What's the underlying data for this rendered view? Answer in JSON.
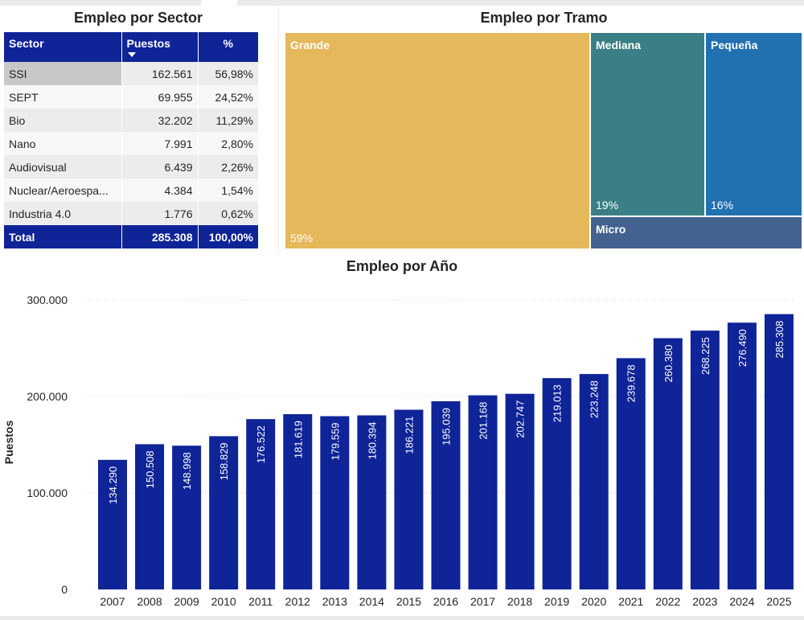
{
  "sector": {
    "title": "Empleo por Sector",
    "columns": [
      "Sector",
      "Puestos",
      "%"
    ],
    "rows": [
      {
        "sector": "SSI",
        "puestos": "162.561",
        "pct": "56,98%"
      },
      {
        "sector": "SEPT",
        "puestos": "69.955",
        "pct": "24,52%"
      },
      {
        "sector": "Bio",
        "puestos": "32.202",
        "pct": "11,29%"
      },
      {
        "sector": "Nano",
        "puestos": "7.991",
        "pct": "2,80%"
      },
      {
        "sector": "Audiovisual",
        "puestos": "6.439",
        "pct": "2,26%"
      },
      {
        "sector": "Nuclear/Aeroespa...",
        "puestos": "4.384",
        "pct": "1,54%"
      },
      {
        "sector": "Industria 4.0",
        "puestos": "1.776",
        "pct": "0,62%"
      }
    ],
    "total": {
      "label": "Total",
      "puestos": "285.308",
      "pct": "100,00%"
    }
  },
  "tramo": {
    "title": "Empleo por Tramo",
    "tiles": [
      {
        "name": "Grande",
        "pct_label": "59%",
        "share": 59,
        "color": "#e6b85c"
      },
      {
        "name": "Mediana",
        "pct_label": "19%",
        "share": 19,
        "color": "#3a7f85"
      },
      {
        "name": "Pequeña",
        "pct_label": "16%",
        "share": 16,
        "color": "#2170b0"
      },
      {
        "name": "Micro",
        "pct_label": "",
        "share": 6,
        "color": "#44628f"
      }
    ]
  },
  "chart_data": {
    "type": "bar",
    "title": "Empleo por Año",
    "xlabel": "",
    "ylabel": "Puestos",
    "ylim": [
      0,
      300000
    ],
    "yticks": [
      0,
      100000,
      200000,
      300000
    ],
    "ytick_labels": [
      "0",
      "100.000",
      "200.000",
      "300.000"
    ],
    "grid": true,
    "bar_color": "#0f2497",
    "categories": [
      "2007",
      "2008",
      "2009",
      "2010",
      "2011",
      "2012",
      "2013",
      "2014",
      "2015",
      "2016",
      "2017",
      "2018",
      "2019",
      "2020",
      "2021",
      "2022",
      "2023",
      "2024",
      "2025"
    ],
    "values": [
      134290,
      150508,
      148998,
      158829,
      176522,
      181619,
      179559,
      180394,
      186221,
      195039,
      201168,
      202747,
      219013,
      223248,
      239678,
      260380,
      268225,
      276490,
      285308
    ],
    "value_labels": [
      "134.290",
      "150.508",
      "148.998",
      "158.829",
      "176.522",
      "181.619",
      "179.559",
      "180.394",
      "186.221",
      "195.039",
      "201.168",
      "202.747",
      "219.013",
      "223.248",
      "239.678",
      "260.380",
      "268.225",
      "276.490",
      "285.308"
    ]
  }
}
